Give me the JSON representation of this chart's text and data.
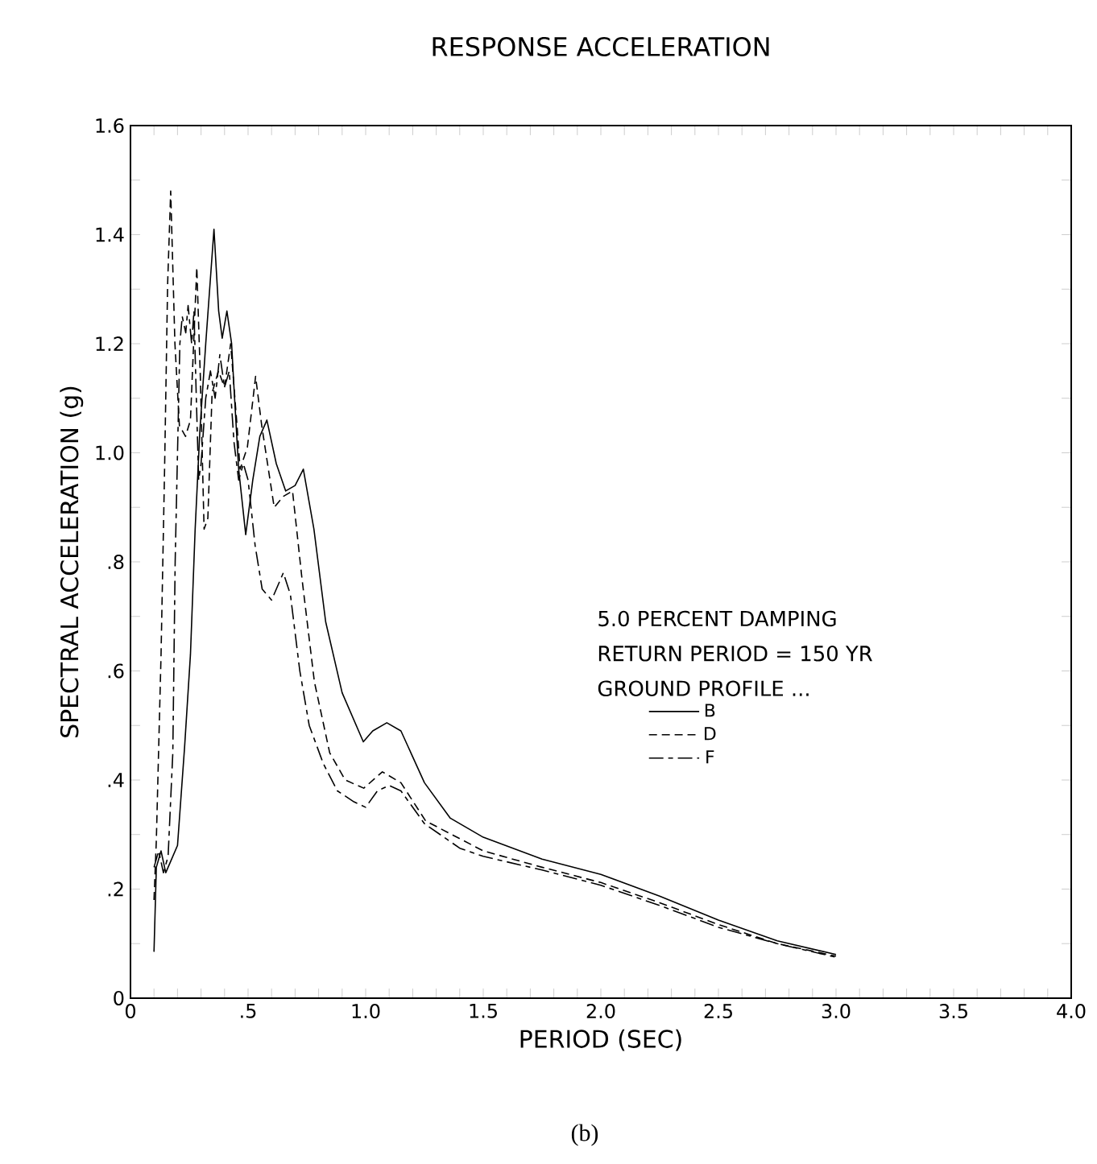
{
  "chart_data": {
    "type": "line",
    "title": "RESPONSE ACCELERATION",
    "xlabel": "PERIOD (SEC)",
    "ylabel": "SPECTRAL ACCELERATION (g)",
    "annotations": [
      "5.0 PERCENT DAMPING",
      "RETURN PERIOD = 150 YR",
      "GROUND PROFILE ...",
      "(b)"
    ],
    "xlim": [
      0,
      4.0
    ],
    "ylim": [
      0,
      1.6
    ],
    "xticks": [
      0,
      {
        "value": 0.1,
        "label": null
      },
      {
        "value": 0.2,
        "label": null
      },
      {
        "value": 0.3,
        "label": null
      },
      {
        "value": 0.4,
        "label": null
      },
      {
        "value": 0.5,
        "label": ".5"
      },
      {
        "value": 0.6,
        "label": null
      },
      {
        "value": 0.7,
        "label": null
      },
      {
        "value": 0.8,
        "label": null
      },
      {
        "value": 0.9,
        "label": null
      },
      {
        "value": 1.0,
        "label": "1.0"
      },
      {
        "value": 1.1,
        "label": null
      },
      {
        "value": 1.2,
        "label": null
      },
      {
        "value": 1.3,
        "label": null
      },
      {
        "value": 1.4,
        "label": null
      },
      {
        "value": 1.5,
        "label": "1.5"
      },
      {
        "value": 1.6,
        "label": null
      },
      {
        "value": 1.7,
        "label": null
      },
      {
        "value": 1.8,
        "label": null
      },
      {
        "value": 1.9,
        "label": null
      },
      {
        "value": 2.0,
        "label": "2.0"
      },
      {
        "value": 2.1,
        "label": null
      },
      {
        "value": 2.2,
        "label": null
      },
      {
        "value": 2.3,
        "label": null
      },
      {
        "value": 2.4,
        "label": null
      },
      {
        "value": 2.5,
        "label": "2.5"
      },
      {
        "value": 2.6,
        "label": null
      },
      {
        "value": 2.7,
        "label": null
      },
      {
        "value": 2.8,
        "label": null
      },
      {
        "value": 2.9,
        "label": null
      },
      {
        "value": 3.0,
        "label": "3.0"
      },
      {
        "value": 3.1,
        "label": null
      },
      {
        "value": 3.2,
        "label": null
      },
      {
        "value": 3.3,
        "label": null
      },
      {
        "value": 3.4,
        "label": null
      },
      {
        "value": 3.5,
        "label": "3.5"
      },
      {
        "value": 3.6,
        "label": null
      },
      {
        "value": 3.7,
        "label": null
      },
      {
        "value": 3.8,
        "label": null
      },
      {
        "value": 3.9,
        "label": null
      },
      {
        "value": 4.0,
        "label": "4.0"
      }
    ],
    "yticks": [
      0,
      {
        "value": 0.1,
        "label": null
      },
      {
        "value": 0.2,
        "label": ".2"
      },
      {
        "value": 0.3,
        "label": null
      },
      {
        "value": 0.4,
        "label": ".4"
      },
      {
        "value": 0.5,
        "label": null
      },
      {
        "value": 0.6,
        "label": ".6"
      },
      {
        "value": 0.7,
        "label": null
      },
      {
        "value": 0.8,
        "label": ".8"
      },
      {
        "value": 0.9,
        "label": null
      },
      {
        "value": 1.0,
        "label": "1.0"
      },
      {
        "value": 1.1,
        "label": null
      },
      {
        "value": 1.2,
        "label": "1.2"
      },
      {
        "value": 1.3,
        "label": null
      },
      {
        "value": 1.4,
        "label": "1.4"
      },
      {
        "value": 1.5,
        "label": null
      },
      {
        "value": 1.6,
        "label": "1.6"
      }
    ],
    "legend": "center",
    "grid": false,
    "series": [
      {
        "name": "B",
        "color": "#000000",
        "line_style": "solid",
        "x": [
          0.1,
          0.11,
          0.13,
          0.15,
          0.17,
          0.2,
          0.23,
          0.255,
          0.275,
          0.295,
          0.32,
          0.355,
          0.375,
          0.39,
          0.41,
          0.43,
          0.44,
          0.46,
          0.49,
          0.52,
          0.55,
          0.58,
          0.62,
          0.66,
          0.7,
          0.735,
          0.78,
          0.83,
          0.9,
          0.99,
          1.03,
          1.09,
          1.15,
          1.25,
          1.36,
          1.5,
          1.75,
          2.0,
          2.25,
          2.5,
          2.75,
          3.0
        ],
        "values": [
          0.085,
          0.24,
          0.27,
          0.23,
          0.25,
          0.28,
          0.46,
          0.63,
          0.86,
          1.04,
          1.2,
          1.41,
          1.26,
          1.21,
          1.26,
          1.2,
          1.12,
          0.97,
          0.85,
          0.95,
          1.03,
          1.06,
          0.98,
          0.93,
          0.94,
          0.97,
          0.86,
          0.69,
          0.56,
          0.47,
          0.49,
          0.505,
          0.49,
          0.395,
          0.33,
          0.295,
          0.255,
          0.227,
          0.187,
          0.143,
          0.105,
          0.08
        ]
      },
      {
        "name": "D",
        "color": "#000000",
        "line_style": "dashed",
        "x": [
          0.1,
          0.11,
          0.13,
          0.145,
          0.158,
          0.171,
          0.189,
          0.208,
          0.234,
          0.255,
          0.282,
          0.297,
          0.313,
          0.329,
          0.347,
          0.374,
          0.4,
          0.426,
          0.453,
          0.466,
          0.497,
          0.532,
          0.558,
          0.611,
          0.65,
          0.689,
          0.729,
          0.782,
          0.847,
          0.913,
          0.992,
          1.071,
          1.15,
          1.255,
          1.5,
          1.75,
          2.0,
          2.25,
          2.5,
          2.75,
          3.0
        ],
        "values": [
          0.18,
          0.29,
          0.63,
          0.97,
          1.31,
          1.48,
          1.2,
          1.05,
          1.03,
          1.06,
          1.34,
          1.14,
          0.86,
          0.88,
          1.11,
          1.15,
          1.12,
          1.2,
          1.05,
          0.97,
          1.01,
          1.14,
          1.05,
          0.9,
          0.92,
          0.93,
          0.77,
          0.58,
          0.45,
          0.4,
          0.385,
          0.415,
          0.395,
          0.325,
          0.27,
          0.24,
          0.212,
          0.175,
          0.135,
          0.1,
          0.077
        ]
      },
      {
        "name": "F",
        "color": "#000000",
        "line_style": "dashdot",
        "x": [
          0.1,
          0.12,
          0.14,
          0.16,
          0.18,
          0.19,
          0.2,
          0.21,
          0.22,
          0.235,
          0.245,
          0.26,
          0.27,
          0.28,
          0.29,
          0.3,
          0.32,
          0.34,
          0.36,
          0.38,
          0.4,
          0.42,
          0.44,
          0.46,
          0.48,
          0.5,
          0.53,
          0.56,
          0.6,
          0.65,
          0.68,
          0.72,
          0.76,
          0.82,
          0.88,
          0.95,
          1.0,
          1.05,
          1.1,
          1.15,
          1.25,
          1.4,
          1.5,
          1.75,
          2.0,
          2.25,
          2.5,
          2.75,
          3.0
        ],
        "values": [
          0.24,
          0.27,
          0.23,
          0.26,
          0.45,
          0.8,
          1.0,
          1.2,
          1.25,
          1.22,
          1.27,
          1.2,
          1.26,
          1.1,
          0.95,
          0.98,
          1.1,
          1.15,
          1.1,
          1.18,
          1.12,
          1.15,
          1.02,
          0.95,
          0.98,
          0.95,
          0.83,
          0.75,
          0.73,
          0.78,
          0.74,
          0.6,
          0.5,
          0.43,
          0.38,
          0.36,
          0.35,
          0.38,
          0.39,
          0.38,
          0.32,
          0.275,
          0.26,
          0.235,
          0.207,
          0.17,
          0.13,
          0.1,
          0.075
        ]
      }
    ]
  }
}
